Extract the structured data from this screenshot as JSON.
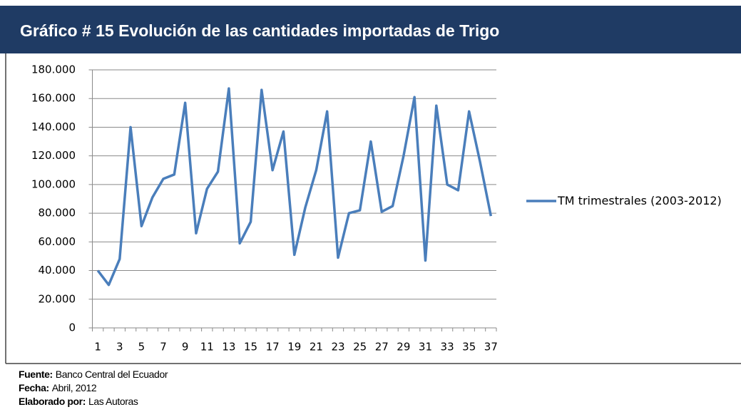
{
  "chart_data": {
    "type": "line",
    "title": "Gráfico # 15 Evolución de las cantidades importadas de Trigo",
    "categories": [
      1,
      null,
      3,
      null,
      5,
      null,
      7,
      null,
      9,
      null,
      11,
      null,
      13,
      null,
      15,
      null,
      17,
      null,
      19,
      null,
      21,
      null,
      23,
      null,
      25,
      null,
      27,
      null,
      29,
      null,
      31,
      null,
      33,
      null,
      35,
      null,
      37
    ],
    "series": [
      {
        "name": "TM trimestrales (2003-2012)",
        "color": "#4a7ebb",
        "values": [
          40000,
          30000,
          48000,
          140000,
          71000,
          91000,
          104000,
          107000,
          157000,
          66000,
          97000,
          109000,
          167000,
          59000,
          74000,
          166000,
          110000,
          137000,
          51000,
          84000,
          110000,
          151000,
          49000,
          80000,
          82000,
          130000,
          81000,
          85000,
          120000,
          161000,
          47000,
          155000,
          100000,
          96000,
          151000,
          116000,
          78000
        ]
      }
    ],
    "ylim": [
      0,
      180000
    ],
    "yticks": [
      0,
      {
        "value": 20000,
        "label": "20.000"
      },
      {
        "value": 40000,
        "label": "40.000"
      },
      {
        "value": 60000,
        "label": "60.000"
      },
      {
        "value": 80000,
        "label": "80.000"
      },
      {
        "value": 100000,
        "label": "100.000"
      },
      {
        "value": 120000,
        "label": "120.000"
      },
      {
        "value": 140000,
        "label": "140.000"
      },
      {
        "value": 160000,
        "label": "160.000"
      },
      {
        "value": 180000,
        "label": "180.000"
      }
    ],
    "grid": true,
    "legend": "right"
  },
  "footer": [
    {
      "label": "Fuente:",
      "text": "Banco Central del Ecuador"
    },
    {
      "label": "Fecha:",
      "text": "Abril, 2012"
    },
    {
      "label": "Elaborado por:",
      "text": "Las Autoras"
    }
  ]
}
